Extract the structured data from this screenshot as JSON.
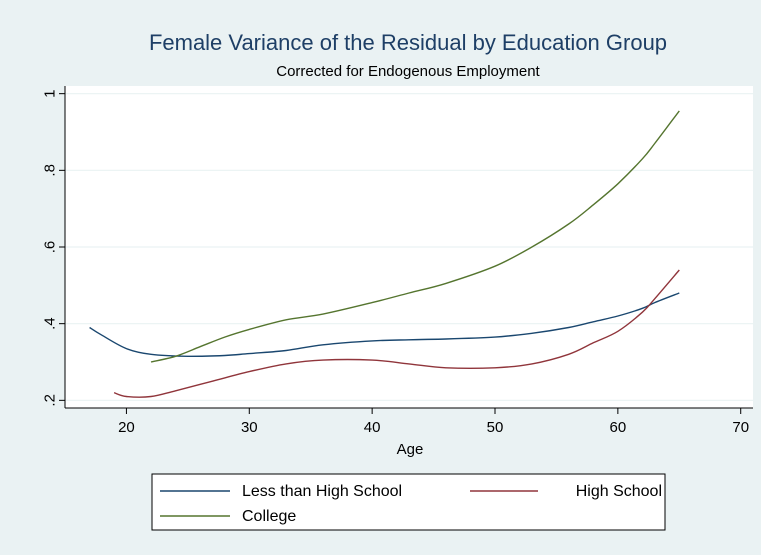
{
  "chart_data": {
    "type": "line",
    "title": "Female Variance of the Residual by Education Group",
    "subtitle": "Corrected for Endogenous Employment",
    "xlabel": "Age",
    "ylabel": "",
    "xlim": [
      15,
      71
    ],
    "ylim": [
      0.18,
      1.02
    ],
    "xticks": [
      20,
      30,
      40,
      50,
      60,
      70
    ],
    "yticks": [
      0.2,
      0.4,
      0.6,
      0.8,
      1.0
    ],
    "xtick_labels": [
      "20",
      "30",
      "40",
      "50",
      "60",
      "70"
    ],
    "ytick_labels": [
      ".2",
      ".4",
      ".6",
      ".8",
      "1"
    ],
    "grid": true,
    "legend_position": "bottom",
    "series": [
      {
        "name": "Less than High School",
        "color": "#1a476f",
        "x": [
          17,
          18,
          20,
          22,
          25,
          28,
          30,
          33,
          36,
          40,
          43,
          46,
          50,
          53,
          56,
          58,
          60,
          62,
          63,
          65
        ],
        "y": [
          0.39,
          0.37,
          0.335,
          0.32,
          0.315,
          0.317,
          0.322,
          0.33,
          0.345,
          0.355,
          0.358,
          0.36,
          0.365,
          0.375,
          0.39,
          0.405,
          0.42,
          0.44,
          0.455,
          0.48
        ]
      },
      {
        "name": "High School",
        "color": "#90353b",
        "x": [
          19,
          20,
          22,
          24,
          27,
          30,
          33,
          36,
          40,
          43,
          46,
          50,
          53,
          56,
          58,
          60,
          62,
          63,
          65
        ],
        "y": [
          0.22,
          0.21,
          0.21,
          0.225,
          0.25,
          0.275,
          0.295,
          0.305,
          0.305,
          0.295,
          0.285,
          0.285,
          0.295,
          0.32,
          0.35,
          0.38,
          0.43,
          0.465,
          0.54
        ]
      },
      {
        "name": "College",
        "color": "#55752f",
        "x": [
          22,
          24,
          26,
          28,
          30,
          33,
          36,
          40,
          43,
          46,
          50,
          53,
          56,
          58,
          60,
          62,
          63,
          65
        ],
        "y": [
          0.3,
          0.315,
          0.34,
          0.365,
          0.385,
          0.41,
          0.425,
          0.455,
          0.48,
          0.505,
          0.55,
          0.6,
          0.66,
          0.71,
          0.765,
          0.83,
          0.87,
          0.955
        ]
      }
    ]
  }
}
